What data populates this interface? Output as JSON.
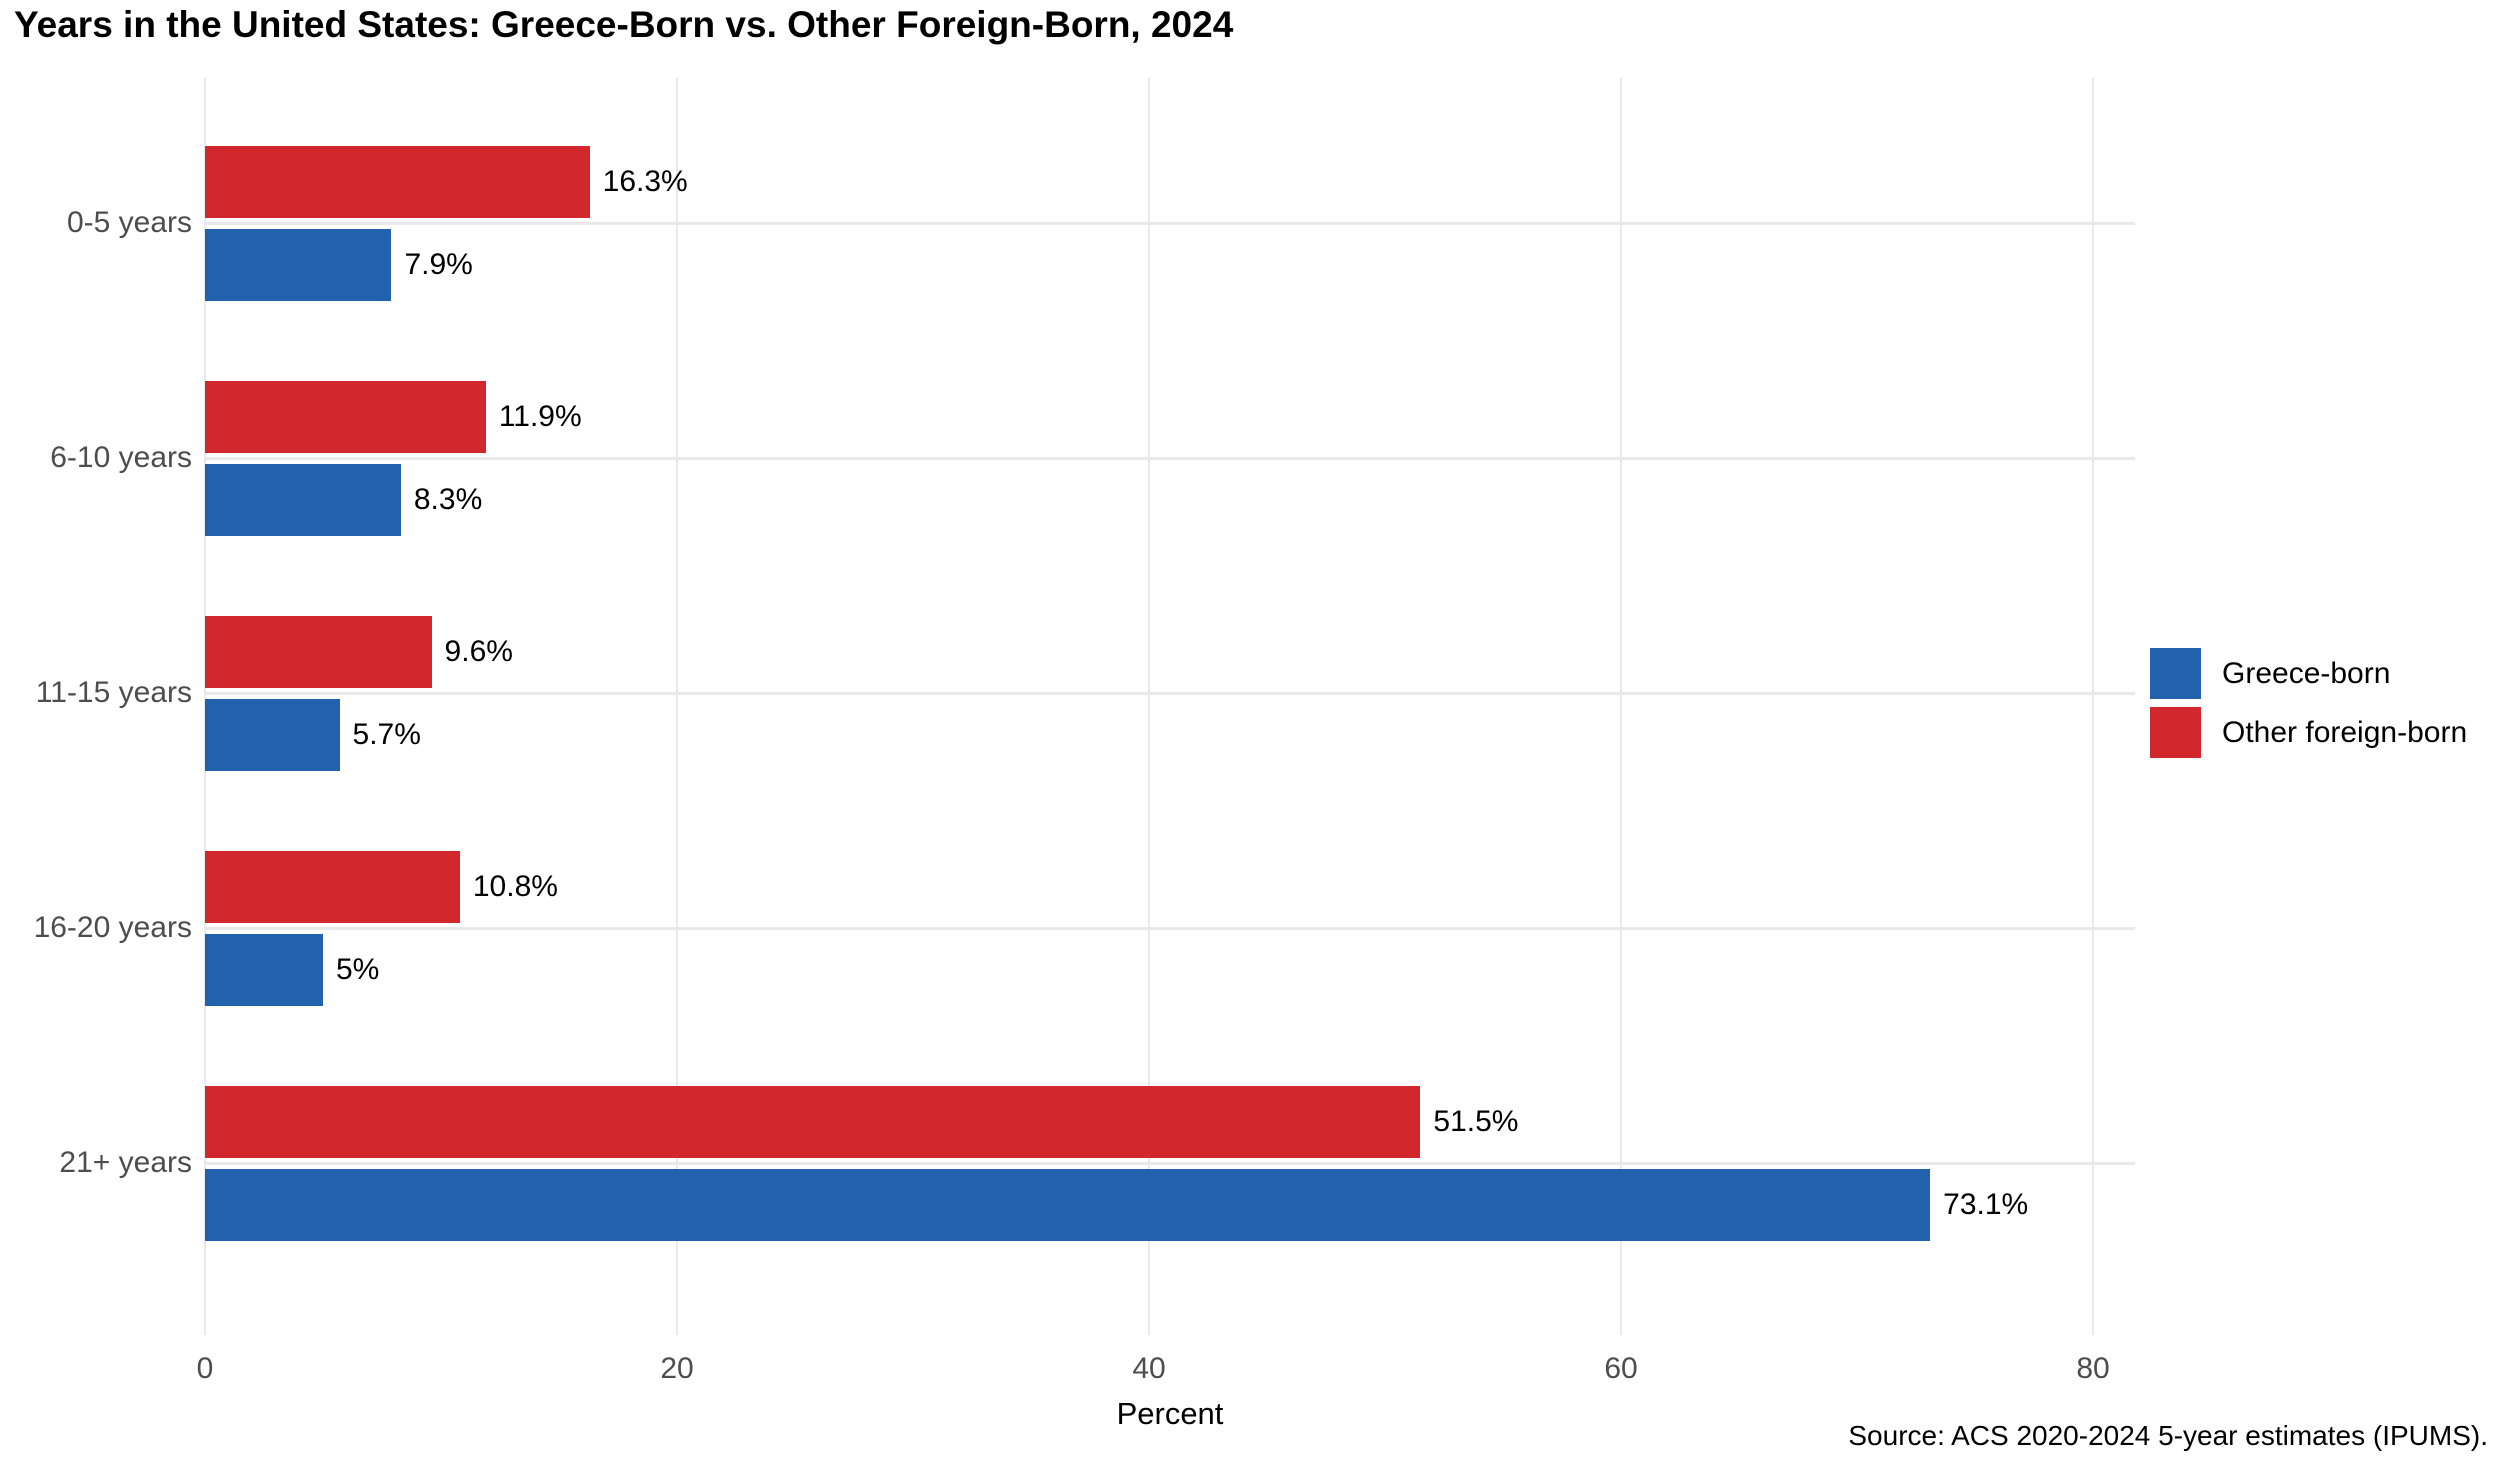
{
  "title": "Years in the United States: Greece-Born vs. Other Foreign-Born, 2024",
  "source": "Source: ACS 2020-2024 5-year estimates (IPUMS).",
  "xlabel": "Percent",
  "colors": {
    "greece_blue": "#2262ac",
    "other_red": "#d2282d",
    "gridline": "#e9e9e9",
    "axis_text": "#4d4d4d",
    "label_text": "#000000"
  },
  "chart_data": {
    "type": "bar",
    "orientation": "horizontal",
    "title": "Years in the United States: Greece-Born vs. Other Foreign-Born, 2024",
    "xlabel": "Percent",
    "ylabel": "",
    "categories": [
      "0-5 years",
      "6-10 years",
      "11-15 years",
      "16-20 years",
      "21+ years"
    ],
    "series": [
      {
        "name": "Greece-born",
        "color": "#2262ac",
        "values": [
          7.9,
          8.3,
          5.7,
          5.0,
          73.1
        ],
        "labels": [
          "7.9%",
          "8.3%",
          "5.7%",
          "5%",
          "73.1%"
        ]
      },
      {
        "name": "Other foreign-born",
        "color": "#d2282d",
        "values": [
          16.3,
          11.9,
          9.6,
          10.8,
          51.5
        ],
        "labels": [
          "16.3%",
          "11.9%",
          "9.6%",
          "10.8%",
          "51.5%"
        ]
      }
    ],
    "bar_order_within_group_top_to_bottom": [
      "Other foreign-born",
      "Greece-born"
    ],
    "x_ticks": [
      0,
      20,
      40,
      60,
      80
    ],
    "xlim": [
      0,
      81.8
    ],
    "grid": "major only, light gray; vertical at x ticks, horizontal at category centers",
    "legend_position": "right, middle",
    "value_labels": "outside end of each bar"
  }
}
